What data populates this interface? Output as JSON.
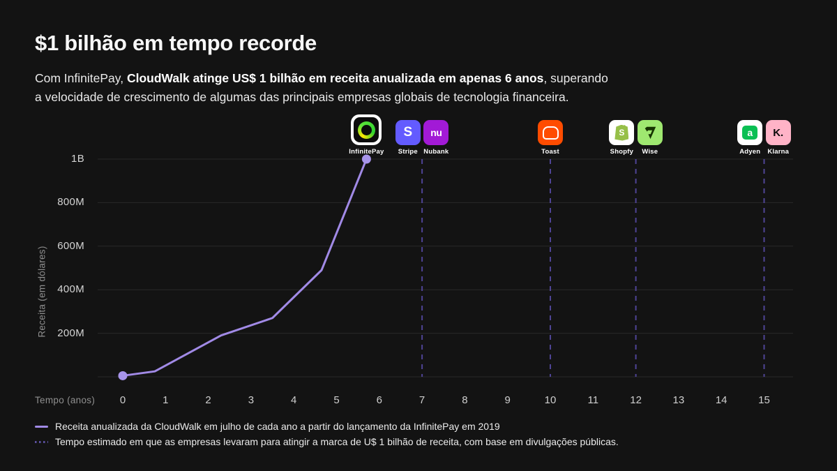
{
  "slide": {
    "title": "$1 bilhão em tempo recorde",
    "subtitle": {
      "prefix": "Com InfinitePay, ",
      "bold": "CloudWalk atinge US$ 1 bilhão em receita anualizada em apenas 6 anos",
      "suffix": ", superando",
      "line2": "a velocidade de crescimento de algumas das principais empresas globais de tecnologia financeira."
    },
    "colors": {
      "background": "#131313",
      "accent_line": "#a18ae6",
      "dashed_line": "#4f4496",
      "grid": "#2a2a2a",
      "muted_text": "#8f8f8f"
    }
  },
  "chart_data": {
    "type": "line",
    "title": "",
    "xlabel": "Tempo (anos)",
    "ylabel": "Receita (em dólares)",
    "x_ticks": [
      0,
      1,
      2,
      3,
      4,
      5,
      6,
      7,
      8,
      9,
      10,
      11,
      12,
      13,
      14,
      15
    ],
    "xlim": [
      -0.6,
      15.7
    ],
    "ylim_millions": [
      0,
      1000
    ],
    "grid": "horizontal gridlines on; vertical dashed milestone lines",
    "legend_position": "bottom-left",
    "y_ticks": [
      {
        "value": 1000,
        "label": "1B"
      },
      {
        "value": 800,
        "label": "800M"
      },
      {
        "value": 600,
        "label": "600M"
      },
      {
        "value": 400,
        "label": "400M"
      },
      {
        "value": 200,
        "label": "200M"
      }
    ],
    "y_gridlines": [
      1000,
      800,
      600,
      400,
      200,
      0
    ],
    "series": [
      {
        "name": "Receita anualizada da CloudWalk",
        "unit": "USD millions",
        "points": [
          [
            0,
            5
          ],
          [
            0.75,
            25
          ],
          [
            2.3,
            190
          ],
          [
            3.5,
            270
          ],
          [
            4.65,
            490
          ],
          [
            5.7,
            1000
          ]
        ],
        "endpoint_dots": true
      }
    ],
    "milestone_lines": [
      {
        "year": 7,
        "companies": [
          "Stripe",
          "Nubank"
        ]
      },
      {
        "year": 10,
        "companies": [
          "Toast"
        ]
      },
      {
        "year": 12,
        "companies": [
          "Shopfy",
          "Wise"
        ]
      },
      {
        "year": 15,
        "companies": [
          "Adyen",
          "Klarna"
        ]
      }
    ],
    "legend": [
      {
        "swatch": "solid-line",
        "label": "Receita anualizada da CloudWalk em julho de cada ano a partir do lançamento da InfinitePay em 2019"
      },
      {
        "swatch": "dotted-line",
        "label": "Tempo estimado em que as empresas levaram para atingir a marca de U$ 1 bilhão de receita, com base em divulgações públicas."
      }
    ]
  },
  "logos": [
    {
      "id": "infinitepay",
      "label": "InfinitePay",
      "year": 5.7
    },
    {
      "id": "stripe",
      "label": "Stripe",
      "year": 6.67,
      "glyph": "S",
      "color": "#635bff"
    },
    {
      "id": "nubank",
      "label": "Nubank",
      "year": 7.33,
      "glyph": "nu",
      "color": "#a21ad6"
    },
    {
      "id": "toast",
      "label": "Toast",
      "year": 10,
      "color": "#ff4c00"
    },
    {
      "id": "shopfy",
      "label": "Shopfy",
      "year": 11.67,
      "glyph": "S",
      "color": "#96bf48"
    },
    {
      "id": "wise",
      "label": "Wise",
      "year": 12.33,
      "color": "#9fe870"
    },
    {
      "id": "adyen",
      "label": "Adyen",
      "year": 14.67,
      "glyph": "a",
      "color": "#0abf53"
    },
    {
      "id": "klarna",
      "label": "Klarna",
      "year": 15.33,
      "glyph": "K.",
      "color": "#ffb3c7"
    }
  ]
}
